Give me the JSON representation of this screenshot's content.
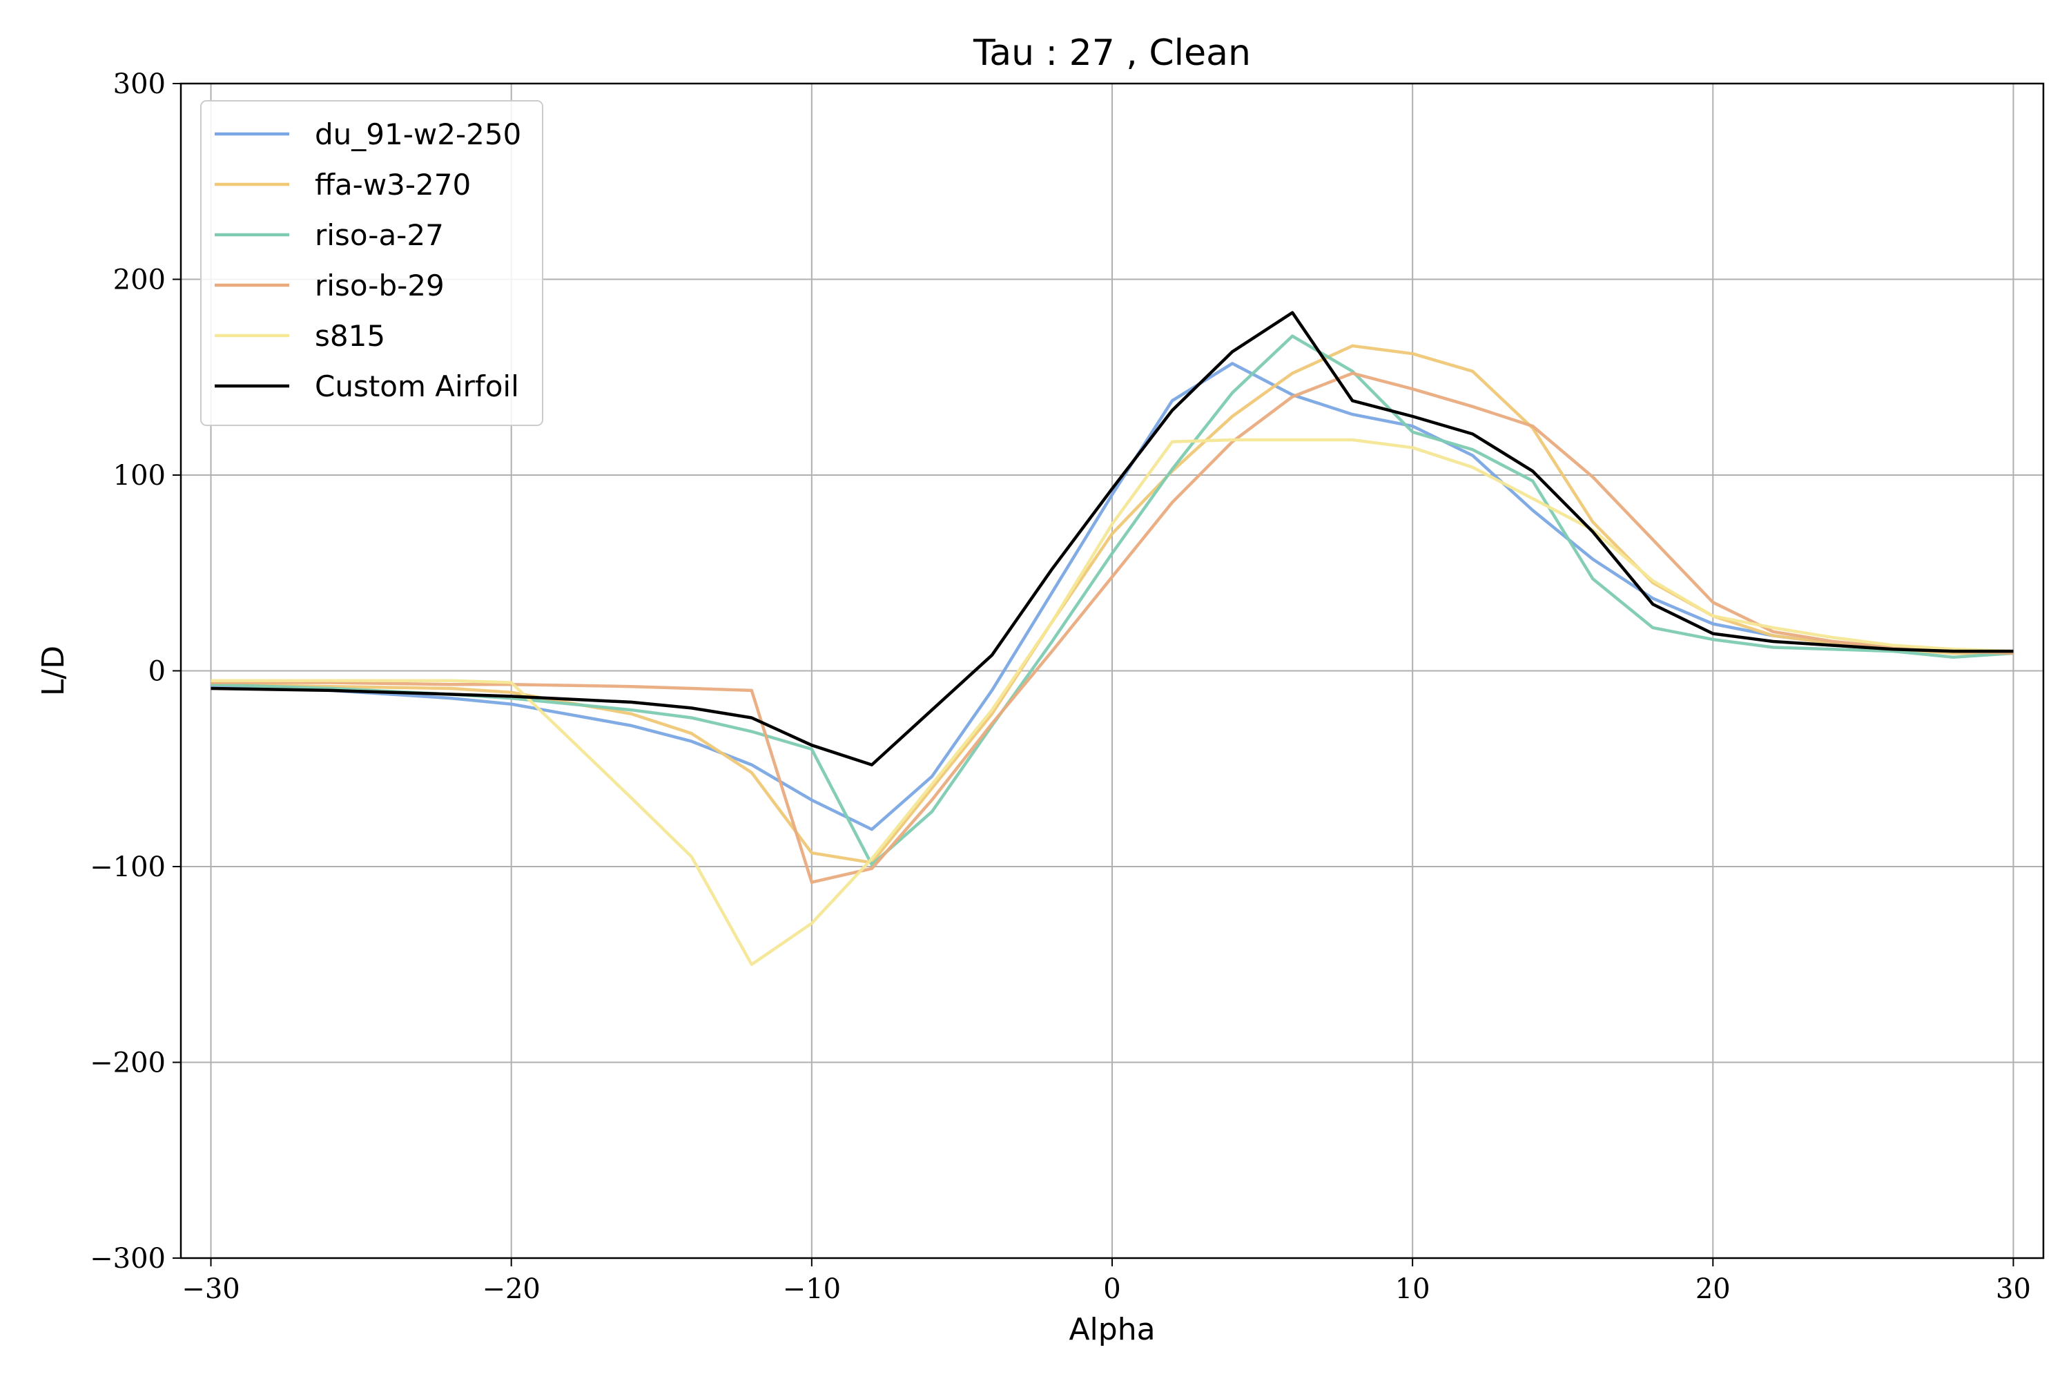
{
  "chart_data": {
    "type": "line",
    "title": "Tau : 27 , Clean",
    "xlabel": "Alpha",
    "ylabel": "L/D",
    "xlim": [
      -31,
      31
    ],
    "ylim": [
      -300,
      300
    ],
    "xticks": [
      -30,
      -20,
      -10,
      0,
      10,
      20,
      30
    ],
    "yticks": [
      -300,
      -200,
      -100,
      0,
      100,
      200,
      300
    ],
    "xtick_labels": [
      "−30",
      "−20",
      "−10",
      "0",
      "10",
      "20",
      "30"
    ],
    "ytick_labels": [
      "−300",
      "−200",
      "−100",
      "0",
      "100",
      "200",
      "300"
    ],
    "grid": true,
    "legend_position": "top-left",
    "series": [
      {
        "name": "du_91-w2-250",
        "color": "#7aa6e3",
        "x": [
          -30,
          -26,
          -22,
          -20,
          -16,
          -14,
          -12,
          -10,
          -8,
          -6,
          -4,
          -2,
          0,
          2,
          4,
          6,
          8,
          10,
          12,
          14,
          16,
          18,
          20,
          22,
          24,
          26,
          28,
          30
        ],
        "y": [
          -8,
          -10,
          -14,
          -17,
          -28,
          -36,
          -48,
          -66,
          -81,
          -54,
          -10,
          40,
          90,
          138,
          157,
          141,
          131,
          125,
          110,
          82,
          57,
          37,
          24,
          18,
          14,
          12,
          10,
          9
        ]
      },
      {
        "name": "ffa-w3-270",
        "color": "#f0c876",
        "x": [
          -30,
          -26,
          -22,
          -20,
          -16,
          -14,
          -12,
          -10,
          -8,
          -6,
          -4,
          -2,
          0,
          2,
          4,
          6,
          8,
          10,
          12,
          14,
          16,
          18,
          20,
          22,
          24,
          26,
          28,
          30
        ],
        "y": [
          -7,
          -8,
          -9,
          -11,
          -22,
          -32,
          -52,
          -93,
          -98,
          -60,
          -22,
          25,
          70,
          102,
          130,
          152,
          166,
          162,
          153,
          124,
          76,
          45,
          28,
          18,
          14,
          11,
          9,
          9
        ]
      },
      {
        "name": "riso-a-27",
        "color": "#7ecbb2",
        "x": [
          -30,
          -26,
          -22,
          -20,
          -16,
          -14,
          -12,
          -10,
          -8,
          -6,
          -4,
          -2,
          0,
          2,
          4,
          6,
          8,
          10,
          12,
          14,
          16,
          18,
          20,
          22,
          24,
          26,
          28,
          30
        ],
        "y": [
          -7,
          -9,
          -12,
          -14,
          -20,
          -24,
          -31,
          -40,
          -99,
          -72,
          -28,
          15,
          60,
          103,
          142,
          171,
          153,
          122,
          113,
          97,
          47,
          22,
          16,
          12,
          11,
          10,
          7,
          9
        ]
      },
      {
        "name": "riso-b-29",
        "color": "#e9ab7d",
        "x": [
          -30,
          -26,
          -22,
          -20,
          -16,
          -14,
          -12,
          -10,
          -8,
          -6,
          -4,
          -2,
          0,
          2,
          4,
          6,
          8,
          10,
          12,
          14,
          16,
          18,
          20,
          22,
          24,
          26,
          28,
          30
        ],
        "y": [
          -6,
          -6,
          -7,
          -7,
          -8,
          -9,
          -10,
          -108,
          -101,
          -66,
          -27,
          10,
          48,
          86,
          117,
          140,
          152,
          144,
          135,
          125,
          99,
          67,
          35,
          20,
          15,
          12,
          10,
          9
        ]
      },
      {
        "name": "s815",
        "color": "#f5e796",
        "x": [
          -30,
          -26,
          -22,
          -20,
          -16,
          -14,
          -12,
          -10,
          -8,
          -6,
          -4,
          -2,
          0,
          2,
          4,
          6,
          8,
          10,
          12,
          14,
          16,
          18,
          20,
          22,
          24,
          26,
          28,
          30
        ],
        "y": [
          -5,
          -5,
          -5,
          -6,
          -65,
          -95,
          -150,
          -129,
          -96,
          -58,
          -20,
          25,
          75,
          117,
          118,
          118,
          118,
          114,
          104,
          88,
          72,
          46,
          28,
          22,
          17,
          13,
          11,
          10
        ]
      },
      {
        "name": "Custom Airfoil",
        "color": "#000000",
        "x": [
          -30,
          -26,
          -22,
          -20,
          -16,
          -14,
          -12,
          -10,
          -8,
          -6,
          -4,
          -2,
          0,
          2,
          4,
          6,
          8,
          10,
          12,
          14,
          16,
          18,
          20,
          22,
          24,
          26,
          28,
          30
        ],
        "y": [
          -9,
          -10,
          -12,
          -13,
          -16,
          -19,
          -24,
          -38,
          -48,
          -20,
          8,
          52,
          93,
          133,
          163,
          183,
          138,
          130,
          121,
          102,
          71,
          34,
          19,
          15,
          13,
          11,
          10,
          10
        ]
      }
    ]
  }
}
